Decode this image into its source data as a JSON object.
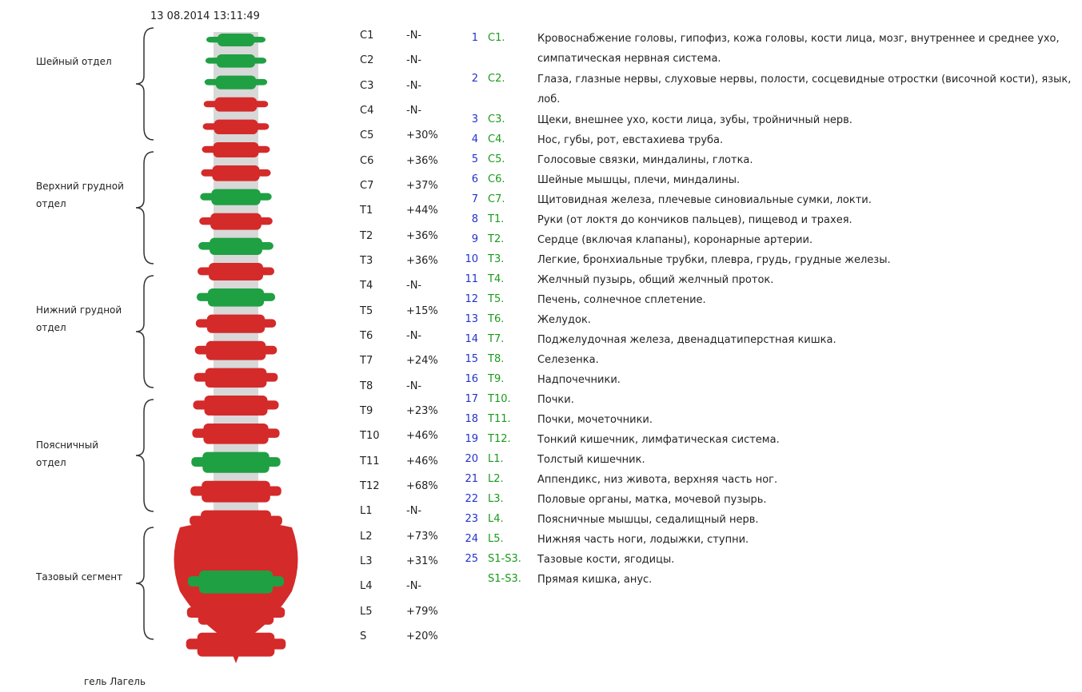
{
  "timestamp": "13 08.2014  13:11:49",
  "sections": [
    "Шейный отдел",
    "Верхний грудной отдел",
    "Нижний грудной отдел",
    "Поясничный отдел",
    "Тазовый сегмент"
  ],
  "levels": [
    {
      "name": "C1",
      "value": "-N-"
    },
    {
      "name": "C2",
      "value": "-N-"
    },
    {
      "name": "C3",
      "value": "-N-"
    },
    {
      "name": "C4",
      "value": "-N-"
    },
    {
      "name": "C5",
      "value": "+30%"
    },
    {
      "name": "C6",
      "value": "+36%"
    },
    {
      "name": "C7",
      "value": "+37%"
    },
    {
      "name": "T1",
      "value": "+44%"
    },
    {
      "name": "T2",
      "value": "+36%"
    },
    {
      "name": "T3",
      "value": "+36%"
    },
    {
      "name": "T4",
      "value": "-N-"
    },
    {
      "name": "T5",
      "value": "+15%"
    },
    {
      "name": "T6",
      "value": "-N-"
    },
    {
      "name": "T7",
      "value": "+24%"
    },
    {
      "name": "T8",
      "value": "-N-"
    },
    {
      "name": "T9",
      "value": "+23%"
    },
    {
      "name": "T10",
      "value": "+46%"
    },
    {
      "name": "T11",
      "value": "+46%"
    },
    {
      "name": "T12",
      "value": "+68%"
    },
    {
      "name": "L1",
      "value": "-N-"
    },
    {
      "name": "L2",
      "value": "+73%"
    },
    {
      "name": "L3",
      "value": "+31%"
    },
    {
      "name": "L4",
      "value": "-N-"
    },
    {
      "name": "L5",
      "value": "+79%"
    },
    {
      "name": "S",
      "value": "+20%"
    }
  ],
  "descriptions": [
    {
      "number": "1",
      "code": "C1.",
      "text": "Кровоснабжение головы, гипофиз, кожа головы, кости лица, мозг, внутреннее и среднее ухо, симпатическая нервная система."
    },
    {
      "number": "2",
      "code": "C2.",
      "text": "Глаза, глазные нервы, слуховые нервы, полости, сосцевидные отростки (височной кости), язык, лоб."
    },
    {
      "number": "3",
      "code": "C3.",
      "text": "Щеки, внешнее ухо, кости лица, зубы, тройничный нерв."
    },
    {
      "number": "4",
      "code": "C4.",
      "text": "Нос, губы, рот, евстахиева труба."
    },
    {
      "number": "5",
      "code": "C5.",
      "text": "Голосовые  связки, миндалины, глотка."
    },
    {
      "number": "6",
      "code": "C6.",
      "text": "Шейные мышцы, плечи, миндалины."
    },
    {
      "number": "7",
      "code": "C7.",
      "text": "Щитовидная железа, плечевые  синовиальные сумки, локти."
    },
    {
      "number": "8",
      "code": "T1.",
      "text": "Руки (от локтя до кончиков пальцев), пищевод и трахея."
    },
    {
      "number": "9",
      "code": "T2.",
      "text": "Сердце (включая   клапаны), коронарные артерии."
    },
    {
      "number": "10",
      "code": "T3.",
      "text": "Легкие,  бронхиальные  трубки, плевра, грудь, грудные железы."
    },
    {
      "number": "11",
      "code": "T4.",
      "text": "Желчный пузырь, общий желчный проток."
    },
    {
      "number": "12",
      "code": "T5.",
      "text": "Печень, солнечное сплетение."
    },
    {
      "number": "13",
      "code": "T6.",
      "text": "Желудок."
    },
    {
      "number": "14",
      "code": "T7.",
      "text": "Поджелудочная железа, двенадцатиперстная кишка."
    },
    {
      "number": "15",
      "code": "T8.",
      "text": "Селезенка."
    },
    {
      "number": "16",
      "code": "T9.",
      "text": "Надпочечники."
    },
    {
      "number": "17",
      "code": "T10.",
      "text": "Почки."
    },
    {
      "number": "18",
      "code": "T11.",
      "text": "Почки, мочеточники."
    },
    {
      "number": "19",
      "code": "T12.",
      "text": "Тонкий  кишечник, лимфатическая система."
    },
    {
      "number": "20",
      "code": "L1.",
      "text": "Толстый  кишечник."
    },
    {
      "number": "21",
      "code": "L2.",
      "text": "Аппендикс, низ живота,  верхняя часть ног."
    },
    {
      "number": "22",
      "code": "L3.",
      "text": "Половые органы, матка, мочевой пузырь."
    },
    {
      "number": "23",
      "code": "L4.",
      "text": "Поясничные мышцы, седалищный нерв."
    },
    {
      "number": "24",
      "code": "L5.",
      "text": "Нижняя часть ноги, лодыжки, ступни."
    },
    {
      "number": "25",
      "code": "S1-S3.",
      "text": "Тазовые кости, ягодицы."
    },
    {
      "code": "S1-S3.",
      "text": "Прямая кишка, анус."
    }
  ],
  "footer": "гель Лагель"
}
